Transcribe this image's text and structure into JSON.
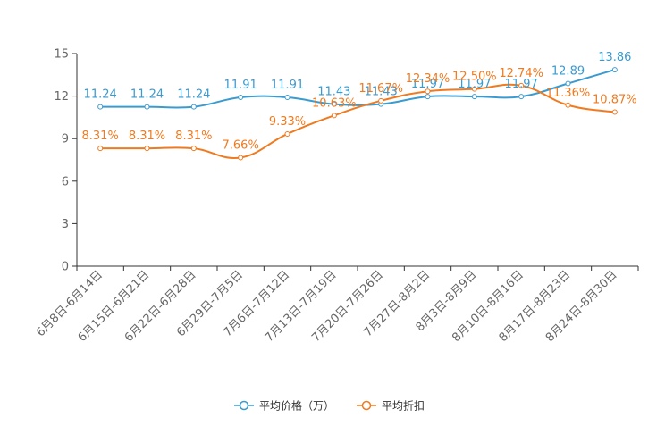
{
  "chart_data": {
    "type": "line",
    "categories": [
      "6月8日-6月14日",
      "6月15日-6月21日",
      "6月22日-6月28日",
      "6月29日-7月5日",
      "7月6日-7月12日",
      "7月13日-7月19日",
      "7月20日-7月26日",
      "7月27日-8月2日",
      "8月3日-8月9日",
      "8月10日-8月16日",
      "8月17日-8月23日",
      "8月24日-8月30日"
    ],
    "ylim": [
      0,
      15
    ],
    "yticks": [
      0,
      3,
      6,
      9,
      12,
      15
    ],
    "grid": false,
    "legend_position": "bottom-center",
    "series": [
      {
        "name": "平均价格（万）",
        "color": "#3a9bd0",
        "values": [
          11.24,
          11.24,
          11.24,
          11.91,
          11.91,
          11.43,
          11.43,
          11.97,
          11.97,
          11.97,
          12.89,
          13.86
        ],
        "labels": [
          "11.24",
          "11.24",
          "11.24",
          "11.91",
          "11.91",
          "11.43",
          "11.43",
          "11.97",
          "11.97",
          "11.97",
          "12.89",
          "13.86"
        ]
      },
      {
        "name": "平均折扣",
        "color": "#f07a1f",
        "values": [
          8.31,
          8.31,
          8.31,
          7.66,
          9.33,
          10.63,
          11.67,
          12.34,
          12.5,
          12.74,
          11.36,
          10.87
        ],
        "labels": [
          "8.31%",
          "8.31%",
          "8.31%",
          "7.66%",
          "9.33%",
          "10.63%",
          "11.67%",
          "12.34%",
          "12.50%",
          "12.74%",
          "11.36%",
          "10.87%"
        ]
      }
    ]
  }
}
